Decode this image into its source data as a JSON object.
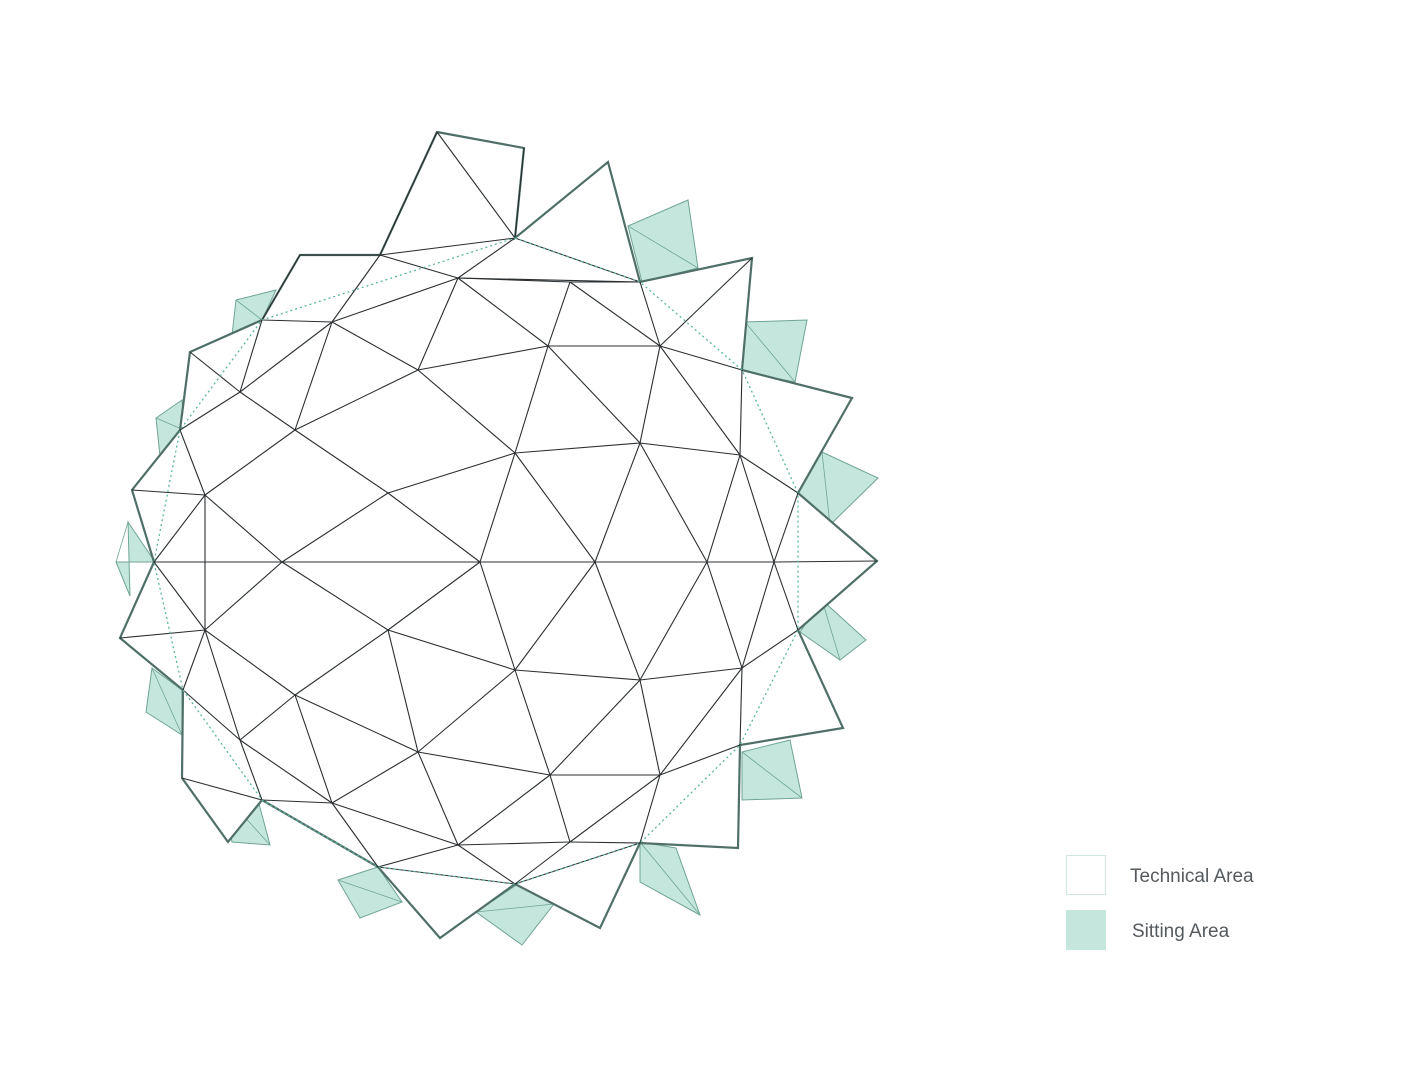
{
  "legend": {
    "items": [
      {
        "label": "Technical Area",
        "fill": "#ffffff",
        "border": "#cfe7df"
      },
      {
        "label": "Sitting Area",
        "fill": "#c5e6dc",
        "border": "#c5e6dc"
      }
    ]
  },
  "colors": {
    "line": "#2b2f31",
    "outline": "#4f6f68",
    "sitting_fill": "#c5e6dc",
    "sitting_edge": "#6fa596",
    "dotted_boundary": "#5bb5a2"
  }
}
